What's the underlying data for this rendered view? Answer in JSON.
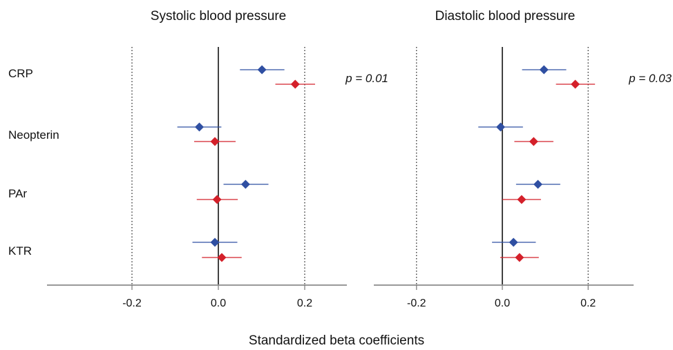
{
  "chart_data": [
    {
      "type": "scatter",
      "title": "Systolic blood pressure",
      "categories": [
        "CRP",
        "Neopterin",
        "PAr",
        "KTR"
      ],
      "xlim": [
        -0.4,
        0.3
      ],
      "xticks": [
        "-0.2",
        "0.0",
        "0.2"
      ],
      "xtick_values": [
        -0.2,
        0.0,
        0.2
      ],
      "reference_lines": [
        -0.2,
        0.0,
        0.2
      ],
      "annotation": "p = 0.01",
      "series": [
        {
          "color": "#2f4fa2",
          "values": [
            0.101,
            -0.044,
            0.063,
            -0.008
          ],
          "ci_low": [
            0.05,
            -0.095,
            0.012,
            -0.06
          ],
          "ci_high": [
            0.153,
            0.007,
            0.116,
            0.044
          ]
        },
        {
          "color": "#d4202a",
          "values": [
            0.178,
            -0.008,
            -0.003,
            0.008
          ],
          "ci_low": [
            0.132,
            -0.056,
            -0.05,
            -0.038
          ],
          "ci_high": [
            0.224,
            0.04,
            0.045,
            0.054
          ]
        }
      ]
    },
    {
      "type": "scatter",
      "title": "Diastolic blood pressure",
      "categories": [
        "CRP",
        "Neopterin",
        "PAr",
        "KTR"
      ],
      "xlim": [
        -0.3,
        0.3
      ],
      "xticks": [
        "-0.2",
        "0.0",
        "0.2"
      ],
      "xtick_values": [
        -0.2,
        0.0,
        0.2
      ],
      "reference_lines": [
        -0.2,
        0.0,
        0.2
      ],
      "annotation": "p = 0.03",
      "series": [
        {
          "color": "#2f4fa2",
          "values": [
            0.097,
            -0.004,
            0.083,
            0.026
          ],
          "ci_low": [
            0.046,
            -0.056,
            0.032,
            -0.024
          ],
          "ci_high": [
            0.149,
            0.048,
            0.135,
            0.078
          ]
        },
        {
          "color": "#d4202a",
          "values": [
            0.17,
            0.073,
            0.045,
            0.04
          ],
          "ci_low": [
            0.125,
            0.028,
            0.0,
            -0.005
          ],
          "ci_high": [
            0.216,
            0.119,
            0.09,
            0.085
          ]
        }
      ]
    }
  ],
  "xlabel": "Standardized beta coefficients"
}
